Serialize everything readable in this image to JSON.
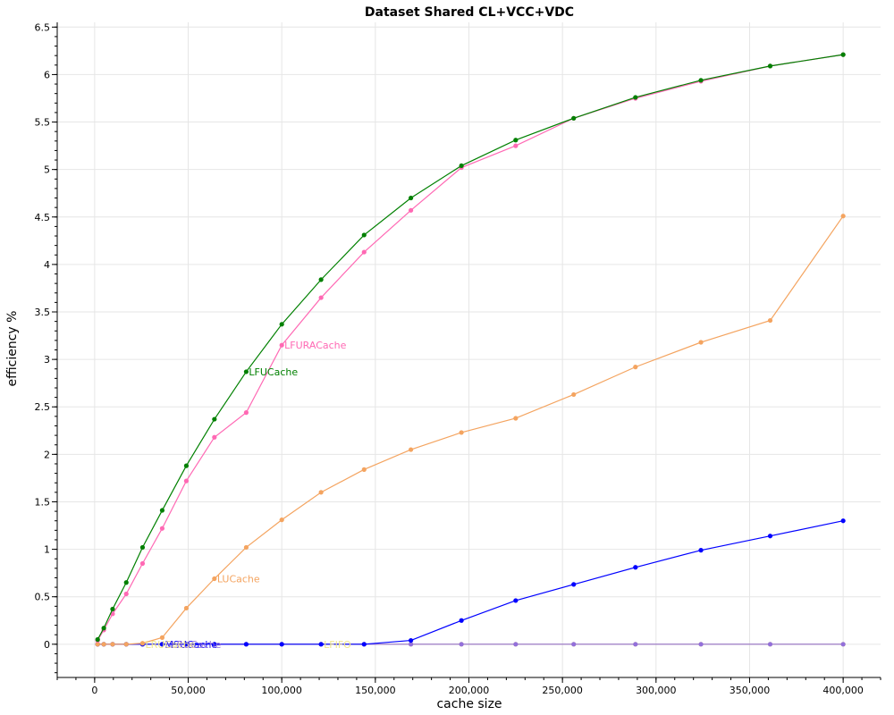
{
  "chart_data": {
    "type": "line",
    "title": "Dataset Shared CL+VCC+VDC",
    "xlabel": "cache size",
    "ylabel": "efficiency %",
    "xlim": [
      -20000,
      420000
    ],
    "ylim": [
      -0.35,
      6.55
    ],
    "xticks": [
      0,
      50000,
      100000,
      150000,
      200000,
      250000,
      300000,
      350000,
      400000
    ],
    "xtick_labels": [
      "0",
      "50,000",
      "100,000",
      "150,000",
      "200,000",
      "250,000",
      "300,000",
      "350,000",
      "400,000"
    ],
    "yticks": [
      0,
      0.5,
      1,
      1.5,
      2,
      2.5,
      3,
      3.5,
      4,
      4.5,
      5,
      5.5,
      6,
      6.5
    ],
    "ytick_labels": [
      "0",
      "0.5",
      "1",
      "1.5",
      "2",
      "2.5",
      "3",
      "3.5",
      "4",
      "4.5",
      "5",
      "5.5",
      "6",
      "6.5"
    ],
    "grid": true,
    "x": [
      1600,
      4900,
      9600,
      16900,
      25600,
      36100,
      49000,
      64000,
      81000,
      100000,
      121000,
      144000,
      169000,
      196000,
      225000,
      256000,
      289000,
      324000,
      361000,
      400000
    ],
    "series": [
      {
        "name": "LFUCache",
        "color": "#008000",
        "values": [
          0.05,
          0.17,
          0.37,
          0.65,
          1.02,
          1.41,
          1.88,
          2.37,
          2.87,
          3.37,
          3.84,
          4.31,
          4.7,
          5.04,
          5.31,
          5.54,
          5.76,
          5.94,
          6.09,
          6.21
        ],
        "label_anchor_index": 8
      },
      {
        "name": "LFURACache",
        "color": "#ff69b4",
        "values": [
          0.04,
          0.15,
          0.32,
          0.53,
          0.85,
          1.22,
          1.72,
          2.18,
          2.44,
          3.15,
          3.65,
          4.13,
          4.57,
          5.02,
          5.25,
          5.54,
          5.75,
          5.93,
          6.09,
          6.21
        ],
        "label_anchor_index": 9
      },
      {
        "name": "LUCache",
        "color": "#f4a460",
        "values": [
          0.0,
          0.0,
          0.0,
          0.0,
          0.01,
          0.07,
          0.38,
          0.69,
          1.02,
          1.31,
          1.6,
          1.84,
          2.05,
          2.23,
          2.38,
          2.63,
          2.92,
          3.18,
          3.41,
          4.51
        ],
        "label_anchor_index": 7
      },
      {
        "name": "MSUCache",
        "color": "#0000ff",
        "values": [
          0.0,
          0.0,
          0.0,
          0.0,
          0.0,
          0.0,
          0.0,
          0.0,
          0.0,
          0.0,
          0.0,
          0.0,
          0.04,
          0.25,
          0.46,
          0.63,
          0.81,
          0.99,
          1.14,
          1.3
        ],
        "label_anchor_index": 5
      },
      {
        "name": "SLRUCache",
        "color": "#9370db",
        "values": [
          0.0,
          0.0,
          0.0,
          0.0,
          0.0,
          0.0,
          0.0,
          0.0,
          0.0,
          0.0,
          0.0,
          0.0,
          0.0,
          0.0,
          0.0,
          0.0,
          0.0,
          0.0,
          0.0,
          0.0
        ],
        "label_anchor_index": 5
      },
      {
        "name": "LRUCache",
        "color": "#f0e68c",
        "values": [
          0.0,
          0.0,
          0.0,
          0.0,
          0.0,
          0.0,
          0.0,
          0.0,
          0.0,
          0.0,
          0.0,
          0.0,
          0.0,
          0.0,
          0.0,
          0.0,
          0.0,
          0.0,
          0.0,
          0.0
        ],
        "label_anchor_index": 4
      },
      {
        "name": "LFIFO",
        "color": "#f0e68c",
        "values": [
          0.0,
          0.0,
          0.0,
          0.0,
          0.0,
          0.0,
          0.0,
          0.0,
          0.0,
          0.0,
          0.0,
          0.0,
          0.0,
          0.0,
          0.0,
          0.0,
          0.0,
          0.0,
          0.0,
          0.0
        ],
        "label_anchor_index": 10
      }
    ]
  }
}
